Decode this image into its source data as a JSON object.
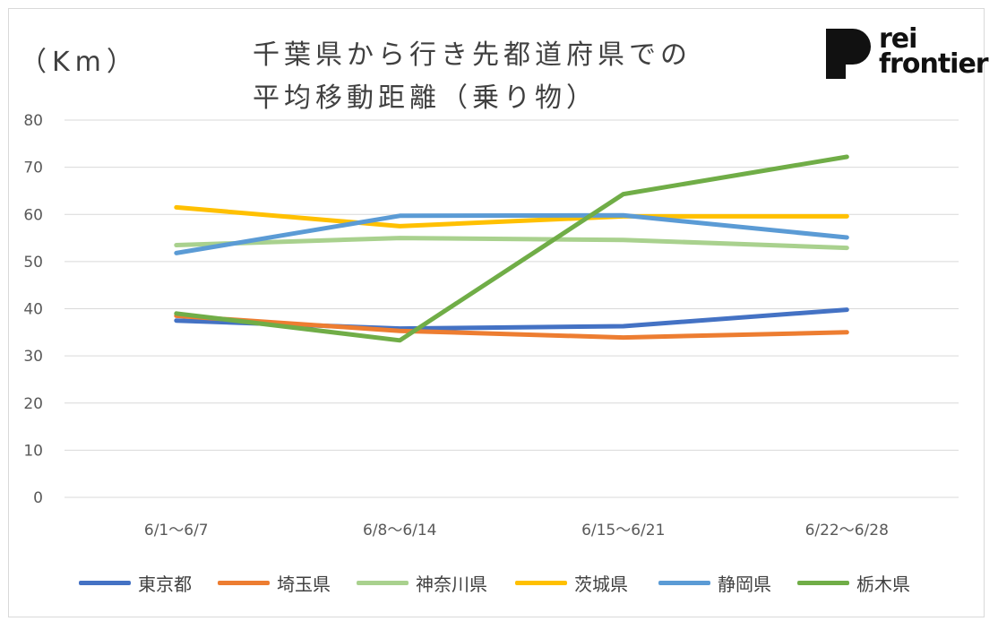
{
  "chart_data": {
    "type": "line",
    "title_line1": "千葉県から行き先都道府県での",
    "title_line2": "平均移動距離（乗り物）",
    "ylabel": "（Km）",
    "categories": [
      "6/1〜6/7",
      "6/8〜6/14",
      "6/15〜6/21",
      "6/22〜6/28"
    ],
    "ylim": [
      0,
      80
    ],
    "yticks": [
      0,
      10,
      20,
      30,
      40,
      50,
      60,
      70,
      80
    ],
    "grid": true,
    "legend_position": "bottom",
    "series": [
      {
        "name": "東京都",
        "values": [
          37.5,
          35.8,
          36.3,
          39.8
        ],
        "color": "#4472C4"
      },
      {
        "name": "埼玉県",
        "values": [
          38.5,
          35.3,
          33.9,
          35.0
        ],
        "color": "#ED7D31"
      },
      {
        "name": "神奈川県",
        "values": [
          53.5,
          55.0,
          54.6,
          52.9
        ],
        "color": "#A9D18E"
      },
      {
        "name": "茨城県",
        "values": [
          61.5,
          57.5,
          59.6,
          59.6
        ],
        "color": "#FFC000"
      },
      {
        "name": "静岡県",
        "values": [
          51.8,
          59.7,
          59.8,
          55.1
        ],
        "color": "#5B9BD5"
      },
      {
        "name": "栃木県",
        "values": [
          39.0,
          33.3,
          64.3,
          72.2
        ],
        "color": "#70AD47"
      }
    ]
  },
  "logo": {
    "line1": "rei",
    "line2": "frontier"
  }
}
